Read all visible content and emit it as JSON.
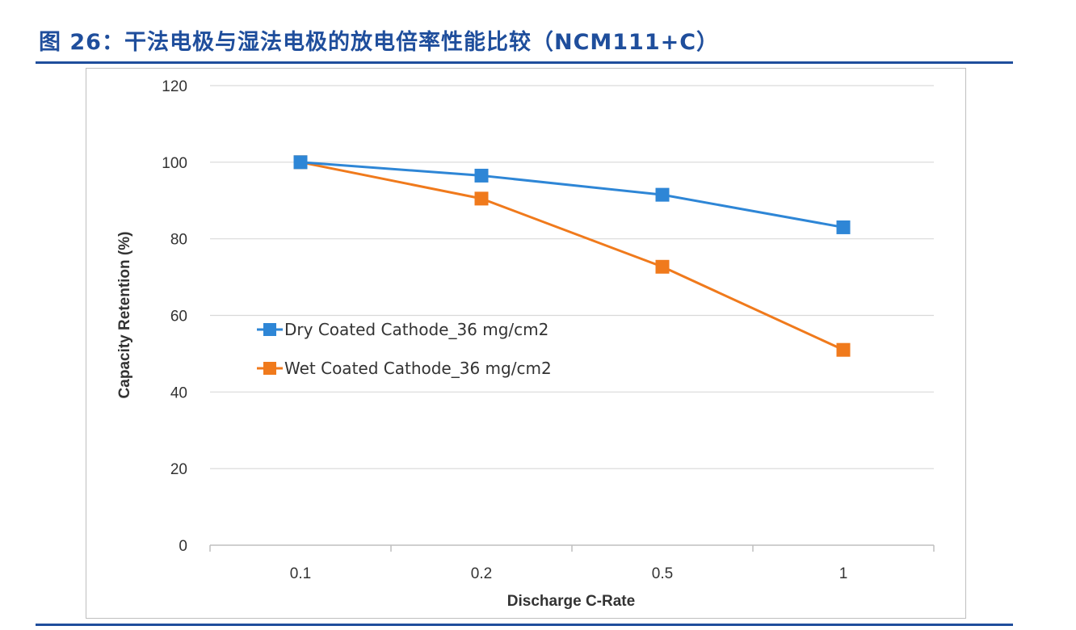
{
  "figure": {
    "title": "图 26：干法电极与湿法电极的放电倍率性能比较（NCM111+C）"
  },
  "chart_data": {
    "type": "line",
    "categories": [
      "0.1",
      "0.2",
      "0.5",
      "1"
    ],
    "series": [
      {
        "name": "Dry Coated Cathode_36 mg/cm2",
        "values": [
          100,
          96.5,
          91.5,
          83
        ],
        "color": "#2e86d6"
      },
      {
        "name": "Wet Coated Cathode_36 mg/cm2",
        "values": [
          100,
          90.5,
          72.7,
          51
        ],
        "color": "#f07a1c"
      }
    ],
    "title": "",
    "xlabel": "Discharge C-Rate",
    "ylabel": "Capacity Retention (%)",
    "ylim": [
      0,
      120
    ],
    "yticks": [
      0,
      20,
      40,
      60,
      80,
      100,
      120
    ],
    "grid": true,
    "legend_position": "center-left",
    "marker": "square"
  }
}
